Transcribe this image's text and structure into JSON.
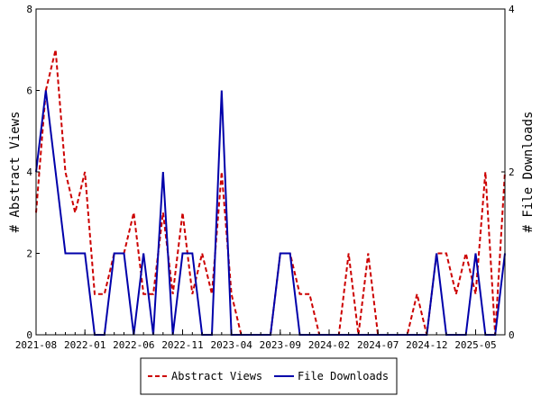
{
  "chart_data": {
    "type": "line",
    "title": "",
    "ylabel_left": "# Abstract Views",
    "ylabel_right": "# File Downloads",
    "x_tick_labels": [
      "2021-08",
      "2022-01",
      "2022-06",
      "2022-11",
      "2023-04",
      "2023-09",
      "2024-02",
      "2024-07",
      "2024-12",
      "2025-05"
    ],
    "x_range_months": [
      0,
      48
    ],
    "y_left": {
      "range": [
        0,
        8
      ],
      "ticks": [
        0,
        2,
        4,
        6,
        8
      ]
    },
    "y_right": {
      "range": [
        0,
        4
      ],
      "ticks": [
        0,
        2,
        4
      ]
    },
    "grid": false,
    "legend_position": "bottom-center",
    "series": [
      {
        "name": "Abstract Views",
        "axis": "left",
        "color": "#cc0000",
        "style": "dashed",
        "x": [
          0,
          1,
          2,
          3,
          4,
          5,
          6,
          7,
          8,
          9,
          10,
          11,
          12,
          13,
          14,
          15,
          16,
          17,
          18,
          19,
          20,
          21,
          22,
          23,
          24,
          25,
          26,
          27,
          28,
          29,
          30,
          31,
          32,
          33,
          34,
          35,
          36,
          37,
          38,
          39,
          40,
          41,
          42,
          43,
          44,
          45,
          46,
          47,
          48
        ],
        "values": [
          3,
          6,
          7,
          4,
          3,
          4,
          1,
          1,
          2,
          2,
          3,
          1,
          1,
          3,
          1,
          3,
          1,
          2,
          1,
          4,
          1,
          0,
          0,
          0,
          0,
          2,
          2,
          1,
          1,
          0,
          0,
          0,
          2,
          0,
          2,
          0,
          0,
          0,
          0,
          1,
          0,
          2,
          2,
          1,
          2,
          1,
          4,
          0,
          4
        ]
      },
      {
        "name": "File Downloads",
        "axis": "right",
        "color": "#0000aa",
        "style": "solid",
        "x": [
          0,
          1,
          2,
          3,
          4,
          5,
          6,
          7,
          8,
          9,
          10,
          11,
          12,
          13,
          14,
          15,
          16,
          17,
          18,
          19,
          20,
          21,
          22,
          23,
          24,
          25,
          26,
          27,
          28,
          29,
          30,
          31,
          32,
          33,
          34,
          35,
          36,
          37,
          38,
          39,
          40,
          41,
          42,
          43,
          44,
          45,
          46,
          47,
          48
        ],
        "values": [
          2,
          3,
          2,
          1,
          1,
          1,
          0,
          0,
          1,
          1,
          0,
          1,
          0,
          2,
          0,
          1,
          1,
          0,
          0,
          3,
          0,
          0,
          0,
          0,
          0,
          1,
          1,
          0,
          0,
          0,
          0,
          0,
          0,
          0,
          0,
          0,
          0,
          0,
          0,
          0,
          0,
          1,
          0,
          0,
          0,
          1,
          0,
          0,
          1
        ]
      }
    ]
  }
}
